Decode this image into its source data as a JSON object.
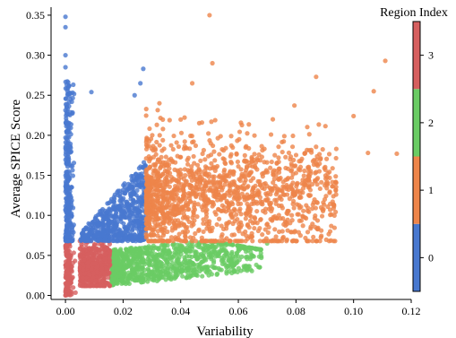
{
  "chart_data": {
    "type": "scatter",
    "xlabel": "Variability",
    "ylabel": "Average SPICE Score",
    "xlim": [
      -0.005,
      0.12
    ],
    "ylim": [
      -0.005,
      0.36
    ],
    "xticks": [
      0.0,
      0.02,
      0.04,
      0.06,
      0.08,
      0.1,
      0.12
    ],
    "xtick_labels": [
      "0.00",
      "0.02",
      "0.04",
      "0.06",
      "0.08",
      "0.10",
      "0.12"
    ],
    "yticks": [
      0.0,
      0.05,
      0.1,
      0.15,
      0.2,
      0.25,
      0.3,
      0.35
    ],
    "ytick_labels": [
      "0.00",
      "0.05",
      "0.10",
      "0.15",
      "0.20",
      "0.25",
      "0.30",
      "0.35"
    ],
    "grid": false,
    "colorbar": {
      "title": "Region Index",
      "range": [
        -0.5,
        3.5
      ],
      "ticks": [
        0,
        1,
        2,
        3
      ],
      "tick_labels": [
        "0",
        "1",
        "2",
        "3"
      ],
      "colors": [
        "#4878d0",
        "#ee854a",
        "#6acc64",
        "#d65f5f"
      ]
    },
    "series": [
      {
        "region": 0,
        "color": "#4878d0",
        "x_range": [
          0.0,
          0.028
        ],
        "y_range": [
          0.065,
          0.35
        ],
        "approx_count": 900
      },
      {
        "region": 1,
        "color": "#ee854a",
        "x_range": [
          0.028,
          0.115
        ],
        "y_range": [
          0.065,
          0.35
        ],
        "approx_count": 1500
      },
      {
        "region": 2,
        "color": "#6acc64",
        "x_range": [
          0.016,
          0.072
        ],
        "y_range": [
          0.0,
          0.07
        ],
        "approx_count": 900
      },
      {
        "region": 3,
        "color": "#d65f5f",
        "x_range": [
          0.0,
          0.016
        ],
        "y_range": [
          0.0,
          0.07
        ],
        "approx_count": 700
      }
    ],
    "notable_points": [
      {
        "region": 0,
        "x": 0.0,
        "y": 0.348
      },
      {
        "region": 0,
        "x": 0.0,
        "y": 0.335
      },
      {
        "region": 0,
        "x": 0.0,
        "y": 0.3
      },
      {
        "region": 0,
        "x": 0.0,
        "y": 0.285
      },
      {
        "region": 0,
        "x": 0.009,
        "y": 0.254
      },
      {
        "region": 0,
        "x": 0.027,
        "y": 0.283
      },
      {
        "region": 0,
        "x": 0.026,
        "y": 0.265
      },
      {
        "region": 0,
        "x": 0.024,
        "y": 0.25
      },
      {
        "region": 1,
        "x": 0.05,
        "y": 0.35
      },
      {
        "region": 1,
        "x": 0.051,
        "y": 0.29
      },
      {
        "region": 1,
        "x": 0.044,
        "y": 0.265
      },
      {
        "region": 1,
        "x": 0.087,
        "y": 0.273
      },
      {
        "region": 1,
        "x": 0.111,
        "y": 0.293
      },
      {
        "region": 1,
        "x": 0.107,
        "y": 0.255
      },
      {
        "region": 1,
        "x": 0.1,
        "y": 0.224
      },
      {
        "region": 1,
        "x": 0.094,
        "y": 0.183
      },
      {
        "region": 1,
        "x": 0.105,
        "y": 0.178
      },
      {
        "region": 1,
        "x": 0.115,
        "y": 0.177
      },
      {
        "region": 1,
        "x": 0.09,
        "y": 0.12
      },
      {
        "region": 2,
        "x": 0.07,
        "y": 0.065
      },
      {
        "region": 2,
        "x": 0.068,
        "y": 0.047
      },
      {
        "region": 3,
        "x": 0.0,
        "y": 0.0
      },
      {
        "region": 3,
        "x": 0.001,
        "y": 0.015
      }
    ]
  }
}
